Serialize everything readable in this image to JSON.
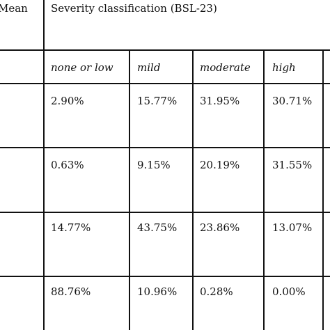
{
  "table": {
    "header": {
      "mean": "Mean",
      "title": "Severity classification (BSL-23)"
    },
    "subheader": [
      "none or low",
      "mild",
      "moderate",
      "high"
    ],
    "rows": [
      [
        "2.90%",
        "15.77%",
        "31.95%",
        "30.71%"
      ],
      [
        "0.63%",
        "9.15%",
        "20.19%",
        "31.55%"
      ],
      [
        "14.77%",
        "43.75%",
        "23.86%",
        "13.07%"
      ],
      [
        "88.76%",
        "10.96%",
        "0.28%",
        "0.00%"
      ]
    ]
  }
}
